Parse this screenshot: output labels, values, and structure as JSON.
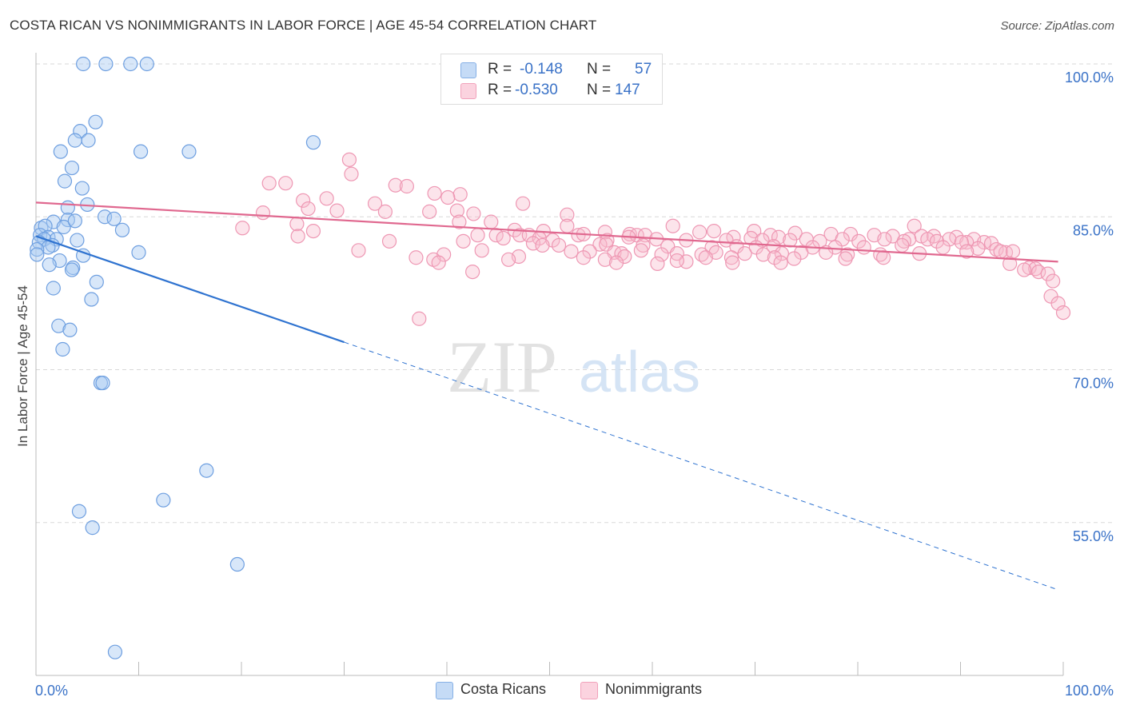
{
  "header": {
    "title": "COSTA RICAN VS NONIMMIGRANTS IN LABOR FORCE | AGE 45-54 CORRELATION CHART",
    "source": "Source: ZipAtlas.com"
  },
  "legend": {
    "rows": [
      {
        "r_label": "R =",
        "r_value": "-0.148",
        "n_label": "N =",
        "n_value": "57",
        "color": "#a9c9f2"
      },
      {
        "r_label": "R =",
        "r_value": "-0.530",
        "n_label": "N =",
        "n_value": "147",
        "color": "#f8bccd"
      }
    ]
  },
  "bottom_legend": [
    {
      "label": "Costa Ricans",
      "color": "#a9c9f2"
    },
    {
      "label": "Nonimmigrants",
      "color": "#f8bccd"
    }
  ],
  "watermark": {
    "zip": "ZIP",
    "atlas": "atlas"
  },
  "chart_data": {
    "type": "scatter",
    "title": "COSTA RICAN VS NONIMMIGRANTS IN LABOR FORCE | AGE 45-54 CORRELATION CHART",
    "xlabel": "",
    "ylabel": "In Labor Force | Age 45-54",
    "xlim": [
      0,
      100
    ],
    "ylim": [
      40,
      100
    ],
    "x_tick_labels": [
      "0.0%",
      "100.0%"
    ],
    "y_tick_labels": [
      "100.0%",
      "85.0%",
      "70.0%",
      "55.0%"
    ],
    "y_ticks": [
      100,
      85,
      70,
      55
    ],
    "grid": true,
    "legend_placement": "top-center",
    "colors": {
      "blue": "#5b93db",
      "blue_fill": "#a9c9f2",
      "pink": "#e46f98",
      "pink_fill": "#f8bccd",
      "blue_line": "#2f73d0",
      "pink_line": "#e0688f",
      "tick_text": "#3a72c7"
    },
    "series": [
      {
        "name": "Costa Ricans",
        "color": "#5b93db",
        "trend": {
          "x0": 0.0,
          "y0": 83.1,
          "x1_solid": 30.0,
          "y1_solid": 72.7,
          "x1": 99.5,
          "y1": 48.4
        },
        "points": [
          [
            4.6,
            100.0
          ],
          [
            6.8,
            100.0
          ],
          [
            9.2,
            100.0
          ],
          [
            10.8,
            100.0
          ],
          [
            5.8,
            94.3
          ],
          [
            4.3,
            93.4
          ],
          [
            3.8,
            92.5
          ],
          [
            5.1,
            92.5
          ],
          [
            2.4,
            91.4
          ],
          [
            10.2,
            91.4
          ],
          [
            14.9,
            91.4
          ],
          [
            27.0,
            92.3
          ],
          [
            3.5,
            89.8
          ],
          [
            2.8,
            88.5
          ],
          [
            4.5,
            87.8
          ],
          [
            5.0,
            86.2
          ],
          [
            3.1,
            85.9
          ],
          [
            3.1,
            84.7
          ],
          [
            1.7,
            84.5
          ],
          [
            6.7,
            85.0
          ],
          [
            7.6,
            84.8
          ],
          [
            2.7,
            84.0
          ],
          [
            3.8,
            84.6
          ],
          [
            0.5,
            83.9
          ],
          [
            0.9,
            84.1
          ],
          [
            8.4,
            83.7
          ],
          [
            0.4,
            83.2
          ],
          [
            1.2,
            83.0
          ],
          [
            2.0,
            82.8
          ],
          [
            0.8,
            82.8
          ],
          [
            0.3,
            82.5
          ],
          [
            1.6,
            82.2
          ],
          [
            4.0,
            82.7
          ],
          [
            1.2,
            82.0
          ],
          [
            0.1,
            81.8
          ],
          [
            4.6,
            81.2
          ],
          [
            10.0,
            81.5
          ],
          [
            2.3,
            80.7
          ],
          [
            1.3,
            80.3
          ],
          [
            3.6,
            80.0
          ],
          [
            3.5,
            79.8
          ],
          [
            5.9,
            78.6
          ],
          [
            1.7,
            78.0
          ],
          [
            5.4,
            76.9
          ],
          [
            2.2,
            74.3
          ],
          [
            3.3,
            73.9
          ],
          [
            2.6,
            72.0
          ],
          [
            6.3,
            68.7
          ],
          [
            6.5,
            68.7
          ],
          [
            16.6,
            60.1
          ],
          [
            12.4,
            57.2
          ],
          [
            4.2,
            56.1
          ],
          [
            5.5,
            54.5
          ],
          [
            19.6,
            50.9
          ],
          [
            7.7,
            42.3
          ],
          [
            0.1,
            81.3
          ]
        ]
      },
      {
        "name": "Nonimmigrants",
        "color": "#e46f98",
        "trend": {
          "x0": 0.0,
          "y0": 86.4,
          "x1": 99.5,
          "y1": 80.6
        },
        "points": [
          [
            30.5,
            90.6
          ],
          [
            30.7,
            89.2
          ],
          [
            24.3,
            88.3
          ],
          [
            22.7,
            88.3
          ],
          [
            35.0,
            88.1
          ],
          [
            36.1,
            88.0
          ],
          [
            38.8,
            87.3
          ],
          [
            41.3,
            87.2
          ],
          [
            40.1,
            86.9
          ],
          [
            28.3,
            86.8
          ],
          [
            26.0,
            86.6
          ],
          [
            33.0,
            86.3
          ],
          [
            47.4,
            86.3
          ],
          [
            26.5,
            85.8
          ],
          [
            29.3,
            85.6
          ],
          [
            34.0,
            85.5
          ],
          [
            38.3,
            85.5
          ],
          [
            41.0,
            85.6
          ],
          [
            22.1,
            85.4
          ],
          [
            42.6,
            85.3
          ],
          [
            51.7,
            85.2
          ],
          [
            25.4,
            84.3
          ],
          [
            41.2,
            84.5
          ],
          [
            44.3,
            84.5
          ],
          [
            51.7,
            84.1
          ],
          [
            62.0,
            84.1
          ],
          [
            85.5,
            84.1
          ],
          [
            20.1,
            83.9
          ],
          [
            27.0,
            83.6
          ],
          [
            25.5,
            83.1
          ],
          [
            46.6,
            83.7
          ],
          [
            49.4,
            83.6
          ],
          [
            55.4,
            83.5
          ],
          [
            64.6,
            83.5
          ],
          [
            66.0,
            83.6
          ],
          [
            69.9,
            83.6
          ],
          [
            71.5,
            83.2
          ],
          [
            73.9,
            83.4
          ],
          [
            77.4,
            83.3
          ],
          [
            79.3,
            83.3
          ],
          [
            81.6,
            83.2
          ],
          [
            83.4,
            83.1
          ],
          [
            86.2,
            83.1
          ],
          [
            87.4,
            83.1
          ],
          [
            89.6,
            83.0
          ],
          [
            91.3,
            82.8
          ],
          [
            43.0,
            83.2
          ],
          [
            44.8,
            83.2
          ],
          [
            47.1,
            83.2
          ],
          [
            48.0,
            83.2
          ],
          [
            52.8,
            83.2
          ],
          [
            53.3,
            83.3
          ],
          [
            57.8,
            83.3
          ],
          [
            58.5,
            83.2
          ],
          [
            59.3,
            83.2
          ],
          [
            67.9,
            83.0
          ],
          [
            69.6,
            82.9
          ],
          [
            72.3,
            83.0
          ],
          [
            75.0,
            82.8
          ],
          [
            78.5,
            82.8
          ],
          [
            82.6,
            82.8
          ],
          [
            85.0,
            82.8
          ],
          [
            86.8,
            82.8
          ],
          [
            88.9,
            82.8
          ],
          [
            90.6,
            82.5
          ],
          [
            92.3,
            82.5
          ],
          [
            45.5,
            82.9
          ],
          [
            49.0,
            82.9
          ],
          [
            50.3,
            82.7
          ],
          [
            55.6,
            82.7
          ],
          [
            57.7,
            83.0
          ],
          [
            60.4,
            82.8
          ],
          [
            63.3,
            82.7
          ],
          [
            67.2,
            82.7
          ],
          [
            70.7,
            82.7
          ],
          [
            73.4,
            82.7
          ],
          [
            76.3,
            82.6
          ],
          [
            80.1,
            82.6
          ],
          [
            84.5,
            82.6
          ],
          [
            87.7,
            82.6
          ],
          [
            90.1,
            82.5
          ],
          [
            93.0,
            82.4
          ],
          [
            34.4,
            82.6
          ],
          [
            41.6,
            82.6
          ],
          [
            48.4,
            82.4
          ],
          [
            49.3,
            82.2
          ],
          [
            50.9,
            82.2
          ],
          [
            54.9,
            82.3
          ],
          [
            55.5,
            82.3
          ],
          [
            59.1,
            82.2
          ],
          [
            61.5,
            82.1
          ],
          [
            65.8,
            82.0
          ],
          [
            68.2,
            82.1
          ],
          [
            70.1,
            82.0
          ],
          [
            71.8,
            82.1
          ],
          [
            75.6,
            82.0
          ],
          [
            77.8,
            82.0
          ],
          [
            80.6,
            82.0
          ],
          [
            84.3,
            82.2
          ],
          [
            88.3,
            82.0
          ],
          [
            91.7,
            81.9
          ],
          [
            93.5,
            81.8
          ],
          [
            94.4,
            81.5
          ],
          [
            31.4,
            81.7
          ],
          [
            43.4,
            81.7
          ],
          [
            52.1,
            81.6
          ],
          [
            53.9,
            81.6
          ],
          [
            56.3,
            81.5
          ],
          [
            57.0,
            81.4
          ],
          [
            58.9,
            81.7
          ],
          [
            60.9,
            81.3
          ],
          [
            62.4,
            81.4
          ],
          [
            64.8,
            81.3
          ],
          [
            66.2,
            81.5
          ],
          [
            69.0,
            81.4
          ],
          [
            70.8,
            81.3
          ],
          [
            72.6,
            81.4
          ],
          [
            74.5,
            81.5
          ],
          [
            76.9,
            81.5
          ],
          [
            79.0,
            81.3
          ],
          [
            82.2,
            81.3
          ],
          [
            86.0,
            81.4
          ],
          [
            90.6,
            81.6
          ],
          [
            93.9,
            81.6
          ],
          [
            95.1,
            81.6
          ],
          [
            39.7,
            81.3
          ],
          [
            47.0,
            81.1
          ],
          [
            53.3,
            81.0
          ],
          [
            55.4,
            80.8
          ],
          [
            57.3,
            81.1
          ],
          [
            63.3,
            80.6
          ],
          [
            65.2,
            81.0
          ],
          [
            67.7,
            81.0
          ],
          [
            71.9,
            81.0
          ],
          [
            73.8,
            80.9
          ],
          [
            78.8,
            80.9
          ],
          [
            82.5,
            81.0
          ],
          [
            37.0,
            81.0
          ],
          [
            38.7,
            80.8
          ],
          [
            39.2,
            80.5
          ],
          [
            46.0,
            80.8
          ],
          [
            56.5,
            80.5
          ],
          [
            60.5,
            80.4
          ],
          [
            62.4,
            80.7
          ],
          [
            67.8,
            80.5
          ],
          [
            72.5,
            80.5
          ],
          [
            94.8,
            80.4
          ],
          [
            96.7,
            80.0
          ],
          [
            97.3,
            79.9
          ],
          [
            96.2,
            79.8
          ],
          [
            97.6,
            79.6
          ],
          [
            98.5,
            79.4
          ],
          [
            99.0,
            78.7
          ],
          [
            42.5,
            79.6
          ],
          [
            98.8,
            77.2
          ],
          [
            99.5,
            76.5
          ],
          [
            100.0,
            75.6
          ],
          [
            37.3,
            75.0
          ]
        ]
      }
    ]
  }
}
